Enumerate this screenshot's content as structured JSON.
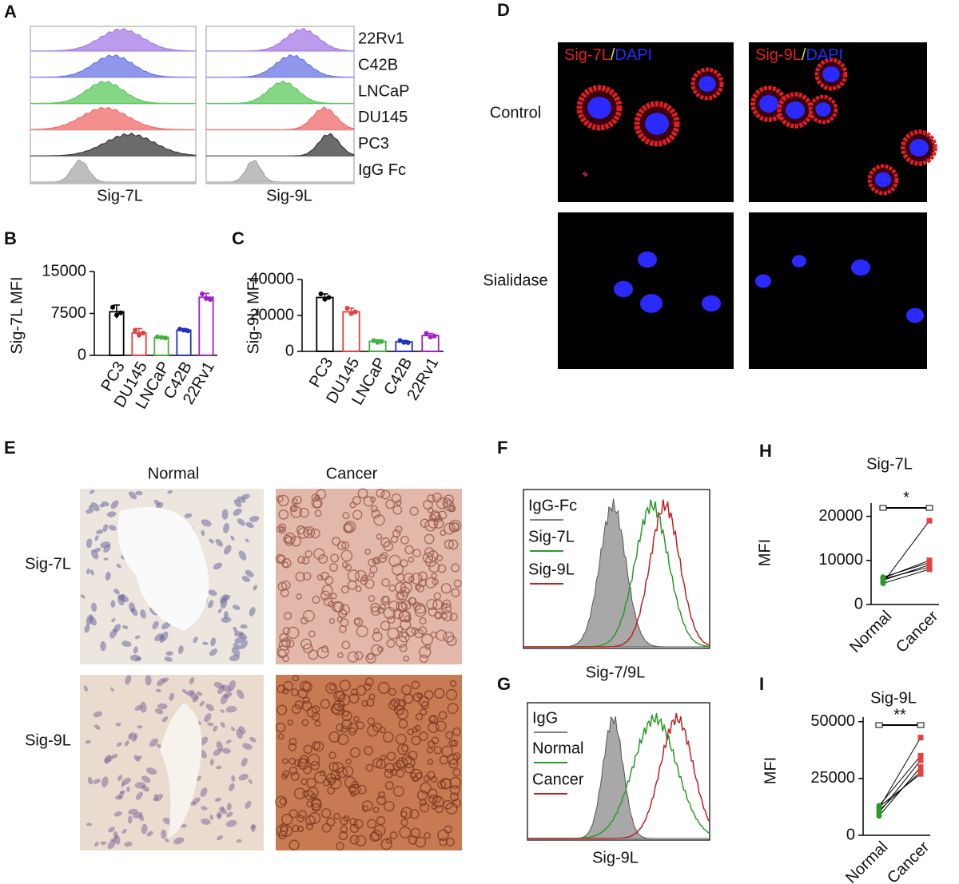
{
  "panel_letters": [
    "A",
    "B",
    "C",
    "D",
    "E",
    "F",
    "G",
    "H",
    "I"
  ],
  "chart_data": [
    {
      "type": "ridgeline",
      "xlabel": "Sig-7L",
      "series": [
        {
          "color": "#a77ae6"
        },
        {
          "color": "#6a74e6"
        },
        {
          "color": "#5cc85c"
        },
        {
          "color": "#f06a6a"
        },
        {
          "color": "#3a3a3a"
        },
        {
          "color": "#a8a8a8"
        }
      ]
    },
    {
      "type": "ridgeline",
      "xlabel": "Sig-9L",
      "series": [
        {
          "name": "22Rv1",
          "color": "#a77ae6"
        },
        {
          "name": "C42B",
          "color": "#6a74e6"
        },
        {
          "name": "LNCaP",
          "color": "#5cc85c"
        },
        {
          "name": "DU145",
          "color": "#f06a6a"
        },
        {
          "name": "PC3",
          "color": "#3a3a3a"
        },
        {
          "name": "IgG Fc",
          "color": "#a8a8a8"
        }
      ]
    },
    {
      "type": "bar",
      "ylabel": "Sig-7L MFI",
      "categories": [
        "PC3",
        "DU145",
        "LNCaP",
        "C42B",
        "22Rv1"
      ],
      "values": [
        7800,
        4000,
        3200,
        4500,
        10400
      ],
      "errors": [
        1200,
        800,
        200,
        300,
        700
      ],
      "points": [
        [
          8600,
          7200,
          7600
        ],
        [
          4500,
          3600,
          4000
        ],
        [
          3300,
          3200,
          3100
        ],
        [
          4700,
          4500,
          4400
        ],
        [
          11000,
          10200,
          10000
        ]
      ],
      "colors": [
        "#000000",
        "#e04040",
        "#40b040",
        "#2030c0",
        "#a020c0"
      ],
      "ylim": [
        0,
        15000
      ],
      "yticks": [
        0,
        7500,
        15000
      ]
    },
    {
      "type": "bar",
      "ylabel": "Sig-9L MFI",
      "categories": [
        "PC3",
        "DU145",
        "LNCaP",
        "C42B",
        "22Rv1"
      ],
      "values": [
        30000,
        22000,
        5500,
        5300,
        8800
      ],
      "errors": [
        2000,
        2000,
        1000,
        800,
        1200
      ],
      "points": [
        [
          32000,
          29000,
          30000
        ],
        [
          24000,
          21000,
          22000
        ],
        [
          6000,
          5000,
          5500
        ],
        [
          6000,
          5000,
          4900
        ],
        [
          10000,
          8000,
          8500
        ]
      ],
      "colors": [
        "#000000",
        "#e04040",
        "#40b040",
        "#2030c0",
        "#a020c0"
      ],
      "ylim": [
        0,
        40000
      ],
      "yticks": [
        0,
        20000,
        40000
      ]
    },
    {
      "type": "overlay",
      "xlabel": "Sig-7/9L",
      "series": [
        {
          "name": "IgG-Fc",
          "color": "#808080"
        },
        {
          "name": "Sig-7L",
          "color": "#2a9a2a"
        },
        {
          "name": "Sig-9L",
          "color": "#c02020"
        }
      ]
    },
    {
      "type": "overlay",
      "xlabel": "Sig-9L",
      "series": [
        {
          "name": "IgG",
          "color": "#808080"
        },
        {
          "name": "Normal",
          "color": "#2a9a2a"
        },
        {
          "name": "Cancer",
          "color": "#c02020"
        }
      ]
    },
    {
      "type": "paired",
      "title": "Sig-7L",
      "ylabel": "MFI",
      "categories": [
        "Normal",
        "Cancer"
      ],
      "annotation": "*",
      "groups": [
        {
          "color": "#2a9a2a",
          "values": [
            5000,
            5500,
            5800,
            6000,
            6200,
            4800
          ]
        },
        {
          "color": "#e84040",
          "values": [
            19000,
            9000,
            8500,
            10000,
            9500,
            8000
          ]
        }
      ],
      "ylim": [
        0,
        23000
      ],
      "yticks": [
        0,
        10000,
        20000
      ]
    },
    {
      "type": "paired",
      "title": "Sig-9L",
      "ylabel": "MFI",
      "categories": [
        "Normal",
        "Cancer"
      ],
      "annotation": "**",
      "groups": [
        {
          "color": "#2a9a2a",
          "values": [
            12000,
            13000,
            10000,
            8500,
            11000,
            12500
          ]
        },
        {
          "color": "#e84040",
          "values": [
            43000,
            35000,
            33000,
            30000,
            28000,
            27000
          ]
        }
      ],
      "ylim": [
        0,
        52000
      ],
      "yticks": [
        0,
        25000,
        50000
      ]
    }
  ],
  "figure_d": {
    "row_labels": [
      "Control",
      "Sialidase"
    ],
    "col_labels": [
      [
        "Sig-7L",
        "/",
        "DAPI"
      ],
      [
        "Sig-9L",
        "/",
        "DAPI"
      ]
    ]
  },
  "figure_e": {
    "col_labels": [
      "Normal",
      "Cancer"
    ],
    "row_labels": [
      "Sig-7L",
      "Sig-9L"
    ]
  }
}
